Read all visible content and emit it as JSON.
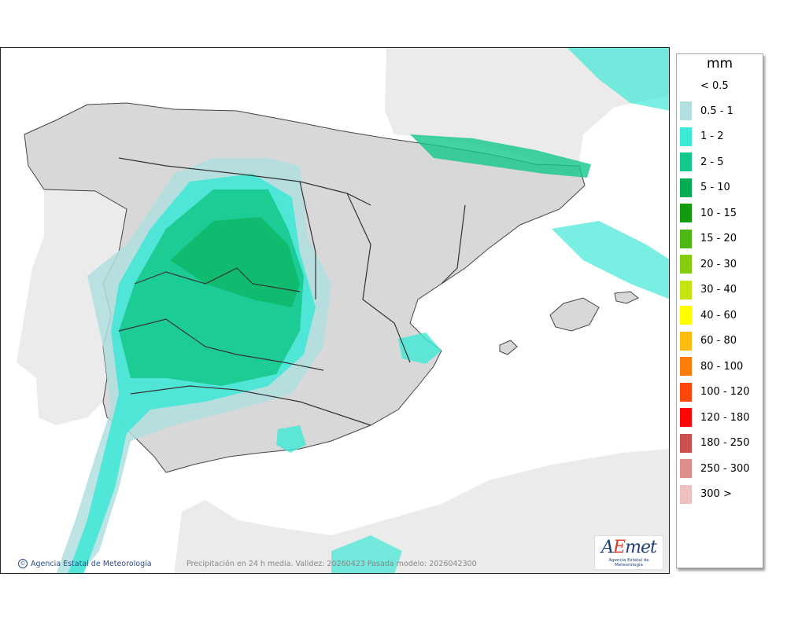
{
  "legend": {
    "unit": "mm",
    "below_label": "< 0.5",
    "classes": [
      {
        "label": "0.5 - 1",
        "color": "#b2dfe0"
      },
      {
        "label": "1 - 2",
        "color": "#3ee8d6"
      },
      {
        "label": "2 - 5",
        "color": "#14c78a"
      },
      {
        "label": "5 - 10",
        "color": "#06ad52"
      },
      {
        "label": "10 - 15",
        "color": "#119b10"
      },
      {
        "label": "15 - 20",
        "color": "#4db814"
      },
      {
        "label": "20 - 30",
        "color": "#86cc10"
      },
      {
        "label": "30 - 40",
        "color": "#c5e412"
      },
      {
        "label": "40 - 60",
        "color": "#ffff00"
      },
      {
        "label": "60 - 80",
        "color": "#fdbc10"
      },
      {
        "label": "80 - 100",
        "color": "#fe7c0c"
      },
      {
        "label": "100 - 120",
        "color": "#fe4608"
      },
      {
        "label": "120 - 180",
        "color": "#fe0707"
      },
      {
        "label": "180 - 250",
        "color": "#cc5050"
      },
      {
        "label": "250 - 300",
        "color": "#df8c8c"
      },
      {
        "label": "300 >",
        "color": "#efc0c0"
      }
    ]
  },
  "footer": {
    "credit": "Agencia Estatal de Meteorología",
    "caption": "Precipitación en 24 h media. Validez: 20260423 Pasada modelo: 2026042300"
  },
  "logo": {
    "wordmark_a": "A",
    "wordmark_e": "E",
    "wordmark_rest": "met",
    "subtitle": "Agencia Estatal de Meteorología"
  },
  "colors": {
    "sea": "#ffffff",
    "land_foreign": "#ebebeb",
    "land_spain": "#d6d6d6"
  }
}
